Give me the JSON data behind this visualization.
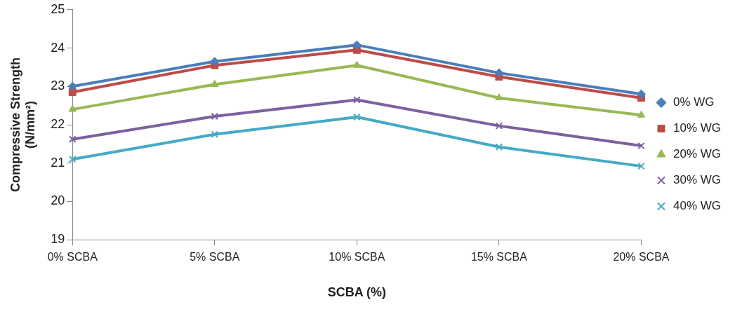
{
  "chart_data": {
    "type": "line",
    "xlabel": "SCBA (%)",
    "ylabel": "Compressive Strength (N/mm²)",
    "categories": [
      "0% SCBA",
      "5% SCBA",
      "10% SCBA",
      "15% SCBA",
      "20% SCBA"
    ],
    "ylim": [
      19,
      25
    ],
    "yticks": [
      19,
      20,
      21,
      22,
      23,
      24,
      25
    ],
    "grid": false,
    "legend": "right",
    "line_style": "solid",
    "series": [
      {
        "name": "0% WG",
        "color": "#4a7ebb",
        "marker": "diamond",
        "values": [
          23.0,
          23.65,
          24.08,
          23.35,
          22.8
        ]
      },
      {
        "name": "10% WG",
        "color": "#be4b48",
        "marker": "square",
        "values": [
          22.85,
          23.55,
          23.95,
          23.25,
          22.7
        ]
      },
      {
        "name": "20% WG",
        "color": "#98b954",
        "marker": "triangle",
        "values": [
          22.4,
          23.05,
          23.55,
          22.7,
          22.25
        ]
      },
      {
        "name": "30% WG",
        "color": "#7d60a0",
        "marker": "cross",
        "values": [
          21.62,
          22.22,
          22.65,
          21.97,
          21.45
        ]
      },
      {
        "name": "40% WG",
        "color": "#46aac5",
        "marker": "cross",
        "values": [
          21.1,
          21.75,
          22.2,
          21.42,
          20.92
        ]
      }
    ]
  }
}
